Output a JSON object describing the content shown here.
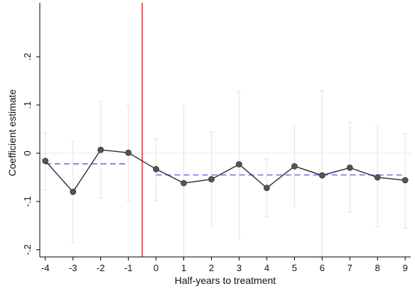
{
  "chart_data": {
    "type": "line",
    "title": "",
    "xlabel": "Half-years to treatment",
    "ylabel": "Coefficient estimate",
    "xlim": [
      -4.2,
      9.2
    ],
    "ylim": [
      -0.215,
      0.3
    ],
    "x_ticks": [
      -4,
      -3,
      -2,
      -1,
      0,
      1,
      2,
      3,
      4,
      5,
      6,
      7,
      8,
      9
    ],
    "x_tick_labels": [
      "-4",
      "-3",
      "-2",
      "-1",
      "0",
      "1",
      "2",
      "3",
      "4",
      "5",
      "6",
      "7",
      "8",
      "9"
    ],
    "y_ticks": [
      -0.2,
      -0.1,
      0,
      0.1,
      0.2
    ],
    "y_tick_labels": [
      "-.2",
      "-.1",
      "0",
      ".1",
      ".2"
    ],
    "grid": false,
    "zero_line": true,
    "treatment_line_x": -0.5,
    "series": [
      {
        "x": [
          -4,
          -3,
          -2,
          -1,
          0,
          1,
          2,
          3,
          4,
          5,
          6,
          7,
          8,
          9
        ],
        "y": [
          -0.016,
          -0.08,
          0.007,
          0.001,
          -0.033,
          -0.062,
          -0.054,
          -0.023,
          -0.072,
          -0.027,
          -0.046,
          -0.03,
          -0.05,
          -0.056
        ],
        "ci_low": [
          -0.076,
          -0.185,
          -0.093,
          -0.098,
          -0.098,
          -0.219,
          -0.15,
          -0.177,
          -0.132,
          -0.11,
          -0.219,
          -0.122,
          -0.153,
          -0.155
        ],
        "ci_high": [
          0.043,
          0.025,
          0.108,
          0.1,
          0.03,
          0.097,
          0.044,
          0.129,
          -0.012,
          0.056,
          0.13,
          0.064,
          0.056,
          0.04
        ]
      }
    ],
    "reference_lines": [
      {
        "x_start": -4,
        "x_end": -1,
        "y": -0.022
      },
      {
        "x_start": 0,
        "x_end": 9,
        "y": -0.045
      }
    ],
    "colors": {
      "line": "#2b2b2b",
      "marker": "#555555",
      "marker_edge": "#333333",
      "ci": "#e6e6e6",
      "mean": "#5555dd",
      "treatment": "#e0202a",
      "zero": "#e6e6e6",
      "axis": "#000000"
    }
  }
}
